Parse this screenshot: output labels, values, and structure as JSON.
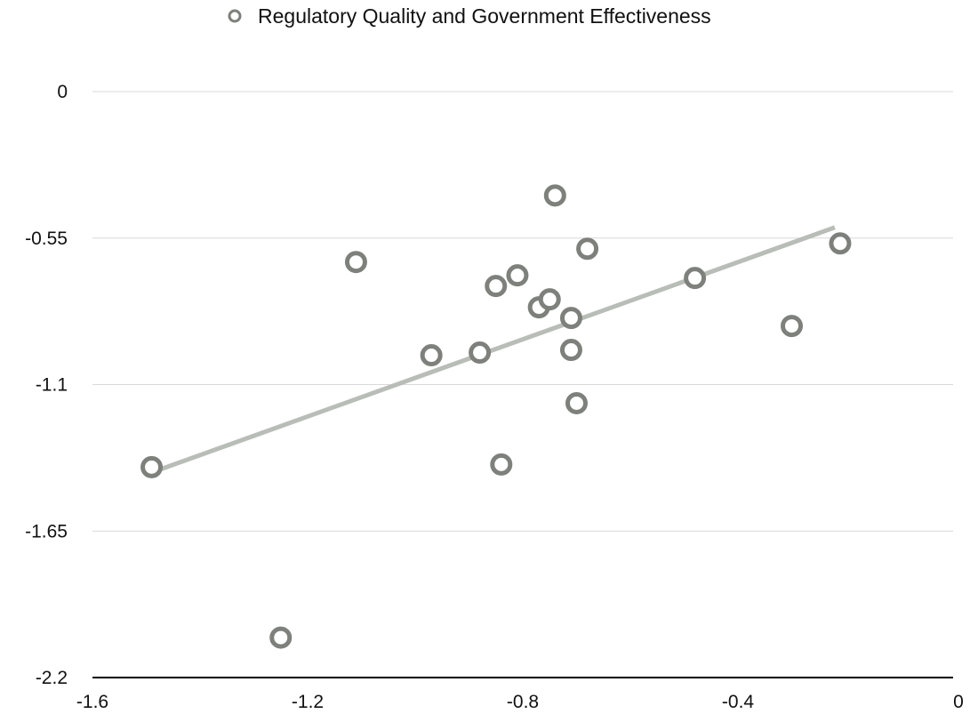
{
  "chart_data": {
    "type": "scatter",
    "title": "",
    "xlabel": "",
    "ylabel": "",
    "xlim": [
      -1.6,
      0
    ],
    "ylim": [
      -2.2,
      0
    ],
    "xticks": [
      -1.6,
      -1.2,
      -0.8,
      -0.4,
      0
    ],
    "xtick_labels": [
      "-1.6",
      "-1.2",
      "-0.8",
      "-0.4",
      "0"
    ],
    "yticks": [
      0,
      -0.55,
      -1.1,
      -1.65,
      -2.2
    ],
    "ytick_labels": [
      "0",
      "-0.55",
      "-1.1",
      "-1.65",
      "-2.2"
    ],
    "grid": "horizontal",
    "legend": "top-center",
    "series": [
      {
        "name": "Regulatory Quality and Government Effectiveness",
        "color": "#7e807c",
        "marker": "open-circle",
        "points": [
          {
            "x": -1.49,
            "y": -1.41
          },
          {
            "x": -1.25,
            "y": -2.05
          },
          {
            "x": -1.11,
            "y": -0.64
          },
          {
            "x": -0.97,
            "y": -0.99
          },
          {
            "x": -0.88,
            "y": -0.98
          },
          {
            "x": -0.85,
            "y": -0.73
          },
          {
            "x": -0.84,
            "y": -1.4
          },
          {
            "x": -0.81,
            "y": -0.69
          },
          {
            "x": -0.77,
            "y": -0.81
          },
          {
            "x": -0.75,
            "y": -0.78
          },
          {
            "x": -0.74,
            "y": -0.39
          },
          {
            "x": -0.71,
            "y": -0.85
          },
          {
            "x": -0.71,
            "y": -0.97
          },
          {
            "x": -0.7,
            "y": -1.17
          },
          {
            "x": -0.68,
            "y": -0.59
          },
          {
            "x": -0.48,
            "y": -0.7
          },
          {
            "x": -0.3,
            "y": -0.88
          },
          {
            "x": -0.21,
            "y": -0.57
          }
        ]
      }
    ],
    "trendline": {
      "type": "linear",
      "color": "#b8bdb8",
      "x": [
        -1.49,
        -0.22
      ],
      "y": [
        -1.43,
        -0.51
      ]
    }
  }
}
